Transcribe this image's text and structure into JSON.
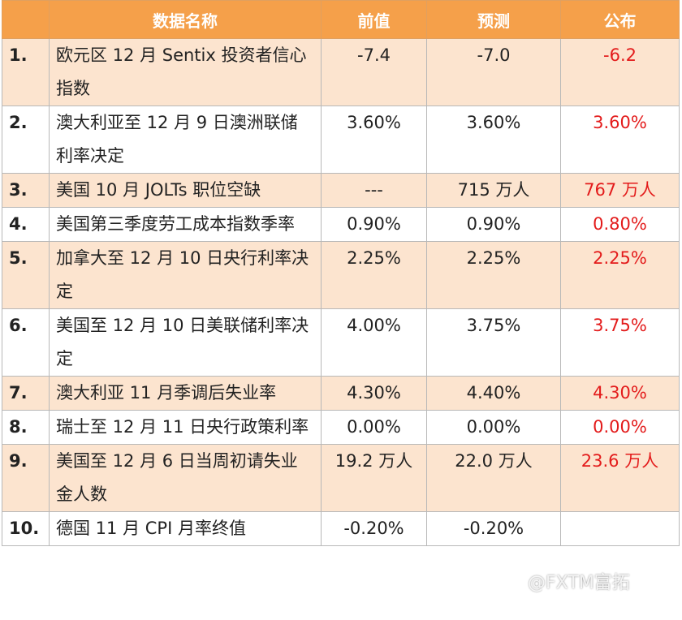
{
  "table": {
    "columns": [
      "数据名称",
      "前值",
      "预测",
      "公布"
    ],
    "rows": [
      [
        "1.",
        "欧元区 12 月 Sentix 投资者信心指数",
        "-7.4",
        "-7.0",
        "-6.2"
      ],
      [
        "2.",
        "澳大利亚至 12 月 9 日澳洲联储利率决定",
        "3.60%",
        "3.60%",
        "3.60%"
      ],
      [
        "3.",
        "美国 10 月 JOLTs 职位空缺",
        "---",
        "715 万人",
        "767 万人"
      ],
      [
        "4.",
        "美国第三季度劳工成本指数季率",
        "0.90%",
        "0.90%",
        "0.80%"
      ],
      [
        "5.",
        "加拿大至 12 月 10 日央行利率决定",
        "2.25%",
        "2.25%",
        "2.25%"
      ],
      [
        "6.",
        "美国至 12 月 10 日美联储利率决定",
        "4.00%",
        "3.75%",
        "3.75%"
      ],
      [
        "7.",
        "澳大利亚 11 月季调后失业率",
        "4.30%",
        "4.40%",
        "4.30%"
      ],
      [
        "8.",
        "瑞士至 12 月 11 日央行政策利率",
        "0.00%",
        "0.00%",
        "0.00%"
      ],
      [
        "9.",
        "美国至 12 月 6 日当周初请失业金人数",
        "19.2 万人",
        "22.0 万人",
        "23.6 万人"
      ],
      [
        "10.",
        "德国 11 月 CPI 月率终值",
        "-0.20%",
        "-0.20%",
        ""
      ]
    ]
  },
  "watermark": "@FXTM富拓"
}
